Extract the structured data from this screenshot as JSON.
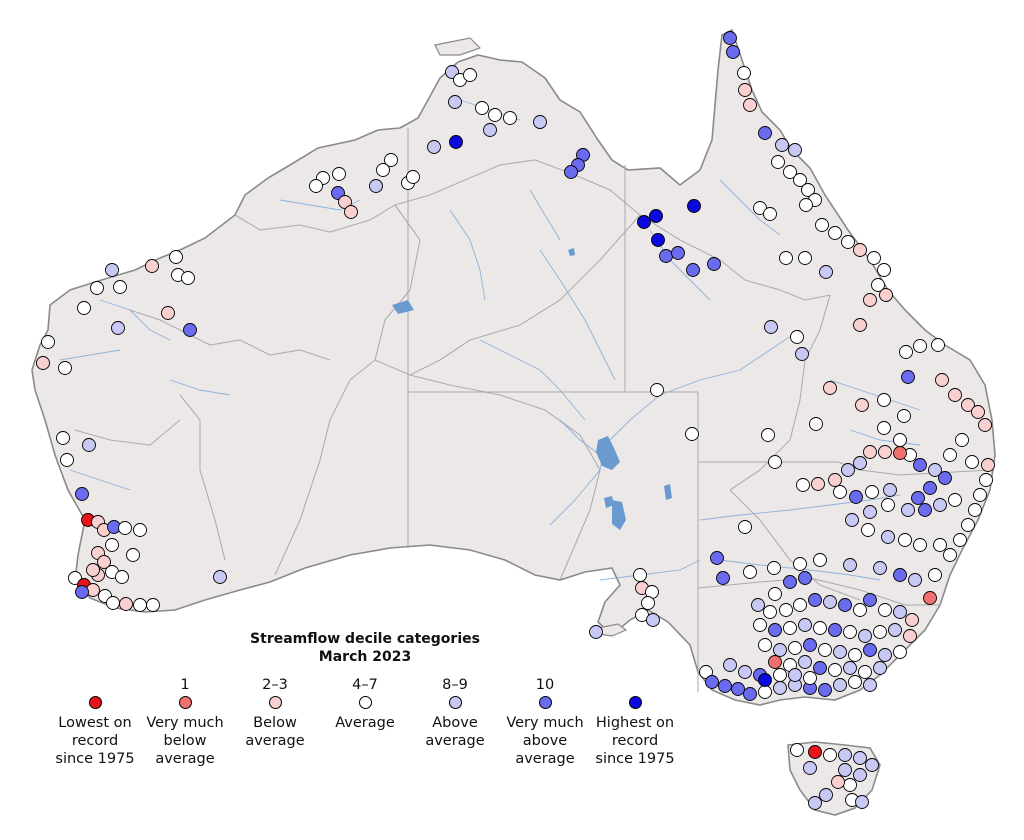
{
  "legend": {
    "title": "Streamflow decile categories",
    "subtitle": "March 2023",
    "items": [
      {
        "key": "lowest",
        "number": "",
        "label": "Lowest on\nrecord\nsince 1975",
        "color": "#e8141c"
      },
      {
        "key": "d1",
        "number": "1",
        "label": "Very much\nbelow\naverage",
        "color": "#f07070"
      },
      {
        "key": "d23",
        "number": "2–3",
        "label": "Below\naverage",
        "color": "#f9cfcf"
      },
      {
        "key": "d47",
        "number": "4–7",
        "label": "Average",
        "color": "#ffffff"
      },
      {
        "key": "d89",
        "number": "8–9",
        "label": "Above\naverage",
        "color": "#c7c8f4"
      },
      {
        "key": "d10",
        "number": "10",
        "label": "Very much\nabove\naverage",
        "color": "#6b6bf0"
      },
      {
        "key": "highest",
        "number": "",
        "label": "Highest on\nrecord\nsince 1975",
        "color": "#0a0adf"
      }
    ]
  },
  "map_style": {
    "land": "#ece8e8",
    "coast": "#8a8a8a",
    "state_border": "#a9a9a9",
    "river": "#7ea9d8",
    "lake": "#6a9ad0"
  }
}
